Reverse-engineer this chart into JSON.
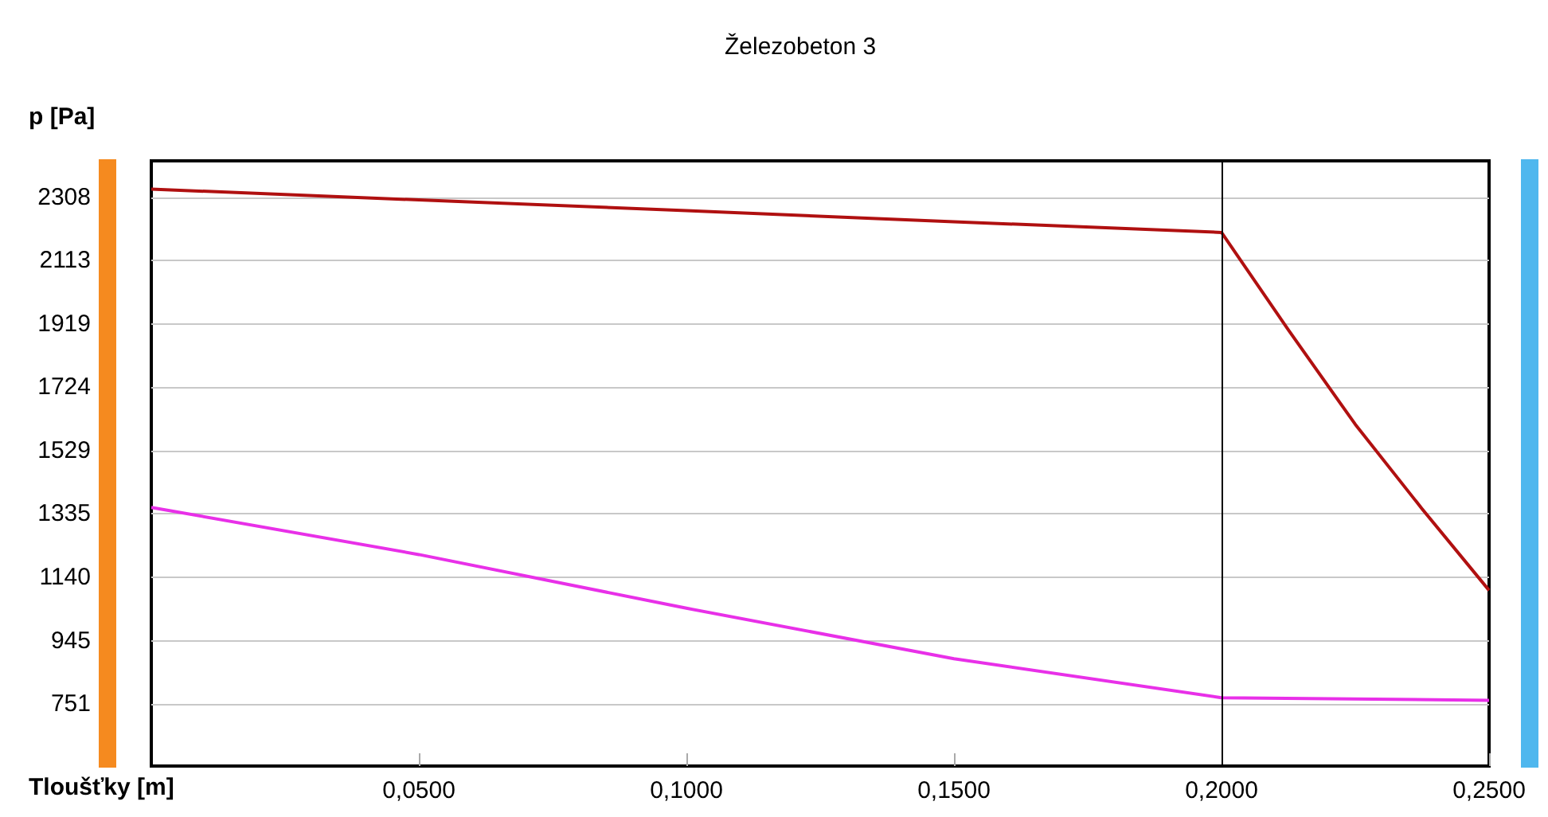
{
  "chart_data": {
    "type": "line",
    "xlabel": "Tloušťky [m]",
    "ylabel": "p [Pa]",
    "annotations": [
      "Železobeton 3"
    ],
    "xlim": [
      0,
      0.25
    ],
    "xticks": [
      {
        "value": 0.05,
        "label": "0,0500"
      },
      {
        "value": 0.1,
        "label": "0,1000"
      },
      {
        "value": 0.15,
        "label": "0,1500"
      },
      {
        "value": 0.2,
        "label": "0,2000"
      },
      {
        "value": 0.25,
        "label": "0,2500"
      }
    ],
    "ylim": [
      560,
      2420
    ],
    "yticks": [
      751,
      945,
      1140,
      1335,
      1529,
      1724,
      1919,
      2113,
      2308
    ],
    "grid": "y",
    "marker": "none",
    "line_style": "solid",
    "ref_lines": [
      {
        "axis": "x",
        "value": 0.2,
        "color": "#000000"
      }
    ],
    "series": [
      {
        "color": "#b01010",
        "x": [
          0,
          0.05,
          0.1,
          0.15,
          0.2,
          0.2125,
          0.225,
          0.2375,
          0.25
        ],
        "values": [
          2333,
          2300,
          2267,
          2233,
          2200,
          1900,
          1610,
          1350,
          1100
        ]
      },
      {
        "color": "#e830e8",
        "x": [
          0,
          0.05,
          0.1,
          0.15,
          0.2,
          0.25
        ],
        "values": [
          1355,
          1210,
          1045,
          890,
          770,
          762
        ]
      }
    ]
  }
}
